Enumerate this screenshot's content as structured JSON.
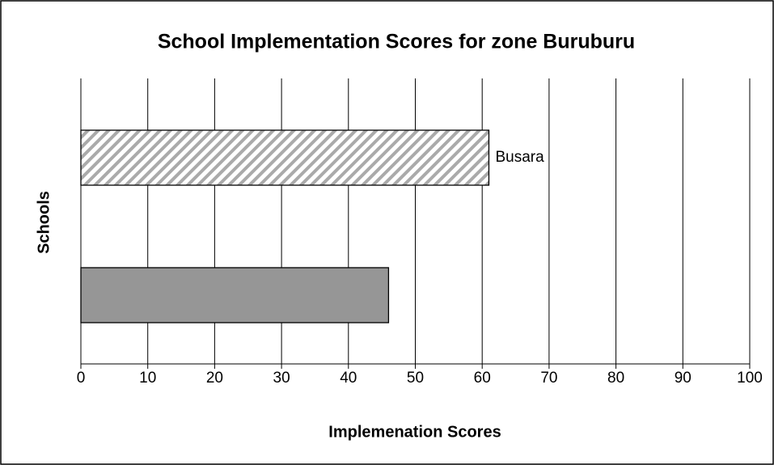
{
  "chart_data": {
    "type": "hbar",
    "title": "School Implementation Scores for zone Buruburu",
    "xlabel": "Implemenation Scores",
    "ylabel": "Schools",
    "categories": [
      null,
      null
    ],
    "values": [
      61,
      46
    ],
    "data_labels": [
      "Busara",
      null
    ],
    "colors": [
      "#ffffff",
      "#969696"
    ],
    "hatch": [
      true,
      false
    ],
    "xlim": [
      0,
      100
    ],
    "xticks": [
      0,
      10,
      20,
      30,
      40,
      50,
      60,
      70,
      80,
      90,
      100
    ],
    "grid": true
  }
}
